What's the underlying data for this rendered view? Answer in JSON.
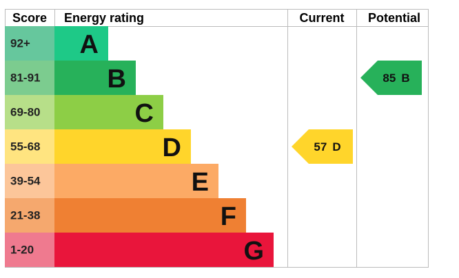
{
  "header": {
    "score": "Score",
    "rating": "Energy rating",
    "current": "Current",
    "potential": "Potential"
  },
  "bands": [
    {
      "score": "92+",
      "letter": "A",
      "color": "#1ec987",
      "score_color": "#66c79d"
    },
    {
      "score": "81-91",
      "letter": "B",
      "color": "#27b15a",
      "score_color": "#7ccc8f"
    },
    {
      "score": "69-80",
      "letter": "C",
      "color": "#8dce46",
      "score_color": "#b7df89"
    },
    {
      "score": "55-68",
      "letter": "D",
      "color": "#ffd52b",
      "score_color": "#ffe480"
    },
    {
      "score": "39-54",
      "letter": "E",
      "color": "#fcaa65",
      "score_color": "#fcc69a"
    },
    {
      "score": "21-38",
      "letter": "F",
      "color": "#ef8033",
      "score_color": "#f5a86e"
    },
    {
      "score": "1-20",
      "letter": "G",
      "color": "#e9153b",
      "score_color": "#ef7a8f"
    }
  ],
  "current": {
    "value": 57,
    "letter": "D"
  },
  "potential": {
    "value": 85,
    "letter": "B"
  }
}
